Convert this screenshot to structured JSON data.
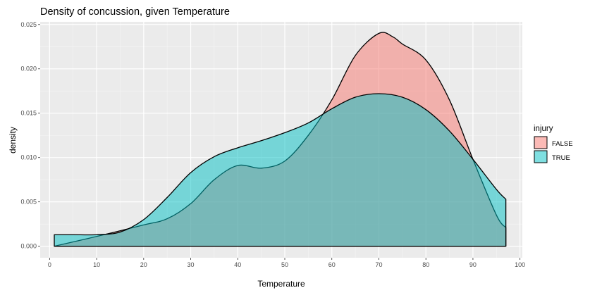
{
  "chart_data": {
    "type": "area",
    "title": "Density of concussion, given Temperature",
    "xlabel": "Temperature",
    "ylabel": "density",
    "xlim": [
      -2,
      100.5
    ],
    "ylim": [
      -0.0013,
      0.0253
    ],
    "x_ticks": [
      0,
      10,
      20,
      30,
      40,
      50,
      60,
      70,
      80,
      90,
      100
    ],
    "y_ticks": [
      0.0,
      0.005,
      0.01,
      0.015,
      0.02,
      0.025
    ],
    "y_tick_labels": [
      "0.000",
      "0.005",
      "0.010",
      "0.015",
      "0.020",
      "0.025"
    ],
    "grid": true,
    "legend": {
      "title": "injury",
      "position": "right"
    },
    "series": [
      {
        "name": "FALSE",
        "color": "#F8766D",
        "x": [
          1,
          10,
          20,
          25,
          30,
          35,
          40,
          45,
          50,
          55,
          60,
          65,
          70,
          73,
          75,
          80,
          85,
          90,
          95,
          97
        ],
        "y": [
          0.0,
          0.0011,
          0.0024,
          0.0031,
          0.0048,
          0.0075,
          0.0091,
          0.0088,
          0.0096,
          0.0125,
          0.0165,
          0.0215,
          0.024,
          0.0236,
          0.0228,
          0.021,
          0.0165,
          0.0098,
          0.0035,
          0.0021
        ]
      },
      {
        "name": "TRUE",
        "color": "#00BFC4",
        "x": [
          1,
          5,
          10,
          15,
          20,
          25,
          30,
          35,
          40,
          45,
          50,
          55,
          60,
          65,
          70,
          75,
          80,
          85,
          90,
          95,
          97
        ],
        "y": [
          0.0013,
          0.0013,
          0.0013,
          0.0016,
          0.003,
          0.0055,
          0.0083,
          0.0101,
          0.0111,
          0.0119,
          0.0128,
          0.0139,
          0.0155,
          0.0168,
          0.0172,
          0.0168,
          0.0154,
          0.013,
          0.0098,
          0.0064,
          0.0053
        ]
      }
    ]
  }
}
